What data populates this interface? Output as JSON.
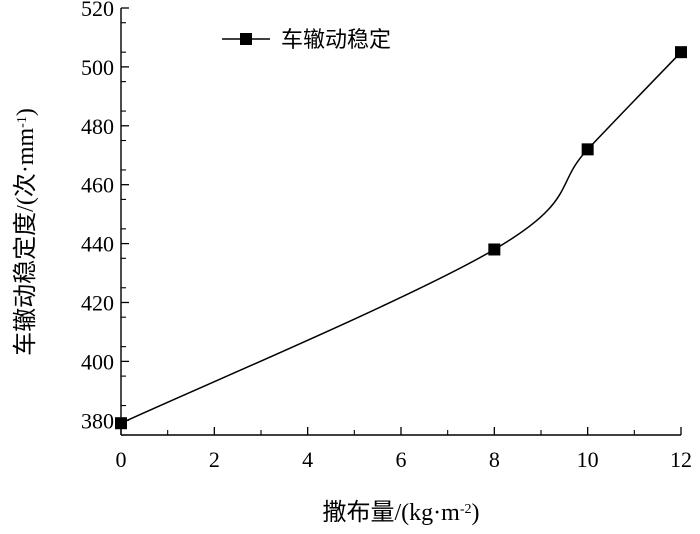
{
  "chart_data": {
    "type": "line",
    "xlabel": "撒布量/(kg·m",
    "xlabel_sup": "-2",
    "xlabel_tail": ")",
    "ylabel": "车辙动稳定度/(次·mm",
    "ylabel_sup": "-1",
    "ylabel_tail": ")",
    "xlim": [
      0,
      12
    ],
    "ylim": [
      380,
      520
    ],
    "y_min_shown": 375,
    "x_ticks": [
      0,
      2,
      4,
      6,
      8,
      10,
      12
    ],
    "x_tick_labels": [
      "0",
      "2",
      "4",
      "6",
      "8",
      "10",
      "12"
    ],
    "y_ticks": [
      380,
      400,
      420,
      440,
      460,
      480,
      500,
      520
    ],
    "y_tick_labels": [
      "380",
      "400",
      "420",
      "440",
      "460",
      "480",
      "500",
      "520"
    ],
    "grid": false,
    "legend_position": "top-left",
    "series": [
      {
        "name": "车辙动稳定",
        "color": "#000000",
        "marker": "square",
        "x": [
          0,
          8,
          10,
          12
        ],
        "y": [
          379,
          438,
          472,
          505
        ]
      }
    ]
  }
}
